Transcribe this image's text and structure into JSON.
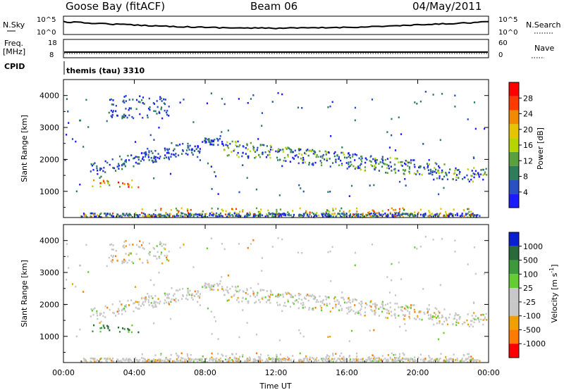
{
  "header": {
    "station": "Goose Bay (fitACF)",
    "beam": "Beam 06",
    "date": "04/May/2011"
  },
  "panels": {
    "nsky_label": "N.Sky",
    "nsky_ticks": [
      "10^5",
      "10^0"
    ],
    "nsearch_label": "N.Search",
    "nsearch_ticks": [
      "10^5",
      "10^0"
    ],
    "freq_label": "Freq.",
    "freq_unit": "[MHz]",
    "freq_ticks": [
      "18",
      "8"
    ],
    "nave_label": "Nave",
    "nave_ticks": [
      "60",
      "0"
    ],
    "cpid_label": "CPID",
    "cpid_value": "themis (tau) 3310"
  },
  "chart_data": [
    {
      "type": "heatmap",
      "name": "power",
      "ylabel": "Slant Range [km]",
      "yticks": [
        1000,
        2000,
        3000,
        4000
      ],
      "ylim": [
        180,
        4500
      ],
      "xlim": [
        0,
        24
      ],
      "xticks": [
        "00:00",
        "04:00",
        "08:00",
        "12:00",
        "16:00",
        "20:00",
        "00:00"
      ],
      "colorbar": {
        "label": "Power [dB]",
        "ticks": [
          "4",
          "8",
          "12",
          "16",
          "20",
          "24",
          "28"
        ],
        "colors": [
          "#1b1bff",
          "#2a4fbf",
          "#2e7d5a",
          "#5aa03c",
          "#b6d400",
          "#e6c400",
          "#f08a00",
          "#ff3a00",
          "#ff0000"
        ]
      },
      "features": [
        {
          "t0": 1.6,
          "t1": 4.4,
          "r0": 1150,
          "r1": 1400,
          "level": "high"
        },
        {
          "t0": 1.5,
          "t1": 9.0,
          "r0": 1500,
          "r1": 2200,
          "level": "low"
        },
        {
          "t0": 2.5,
          "t1": 6.0,
          "r0": 3300,
          "r1": 4000,
          "level": "low"
        },
        {
          "t0": 9.0,
          "t1": 24.0,
          "r0": 1300,
          "r1": 2100,
          "level": "low-mid"
        },
        {
          "t0": 4.0,
          "t1": 23.0,
          "r0": 250,
          "r1": 500,
          "level": "mid"
        }
      ]
    },
    {
      "type": "heatmap",
      "name": "velocity",
      "ylabel": "Slant Range [km]",
      "yticks": [
        1000,
        2000,
        3000,
        4000
      ],
      "ylim": [
        180,
        4500
      ],
      "xlim": [
        0,
        24
      ],
      "xticks": [
        "00:00",
        "04:00",
        "08:00",
        "12:00",
        "16:00",
        "20:00",
        "00:00"
      ],
      "xlabel": "Time UT",
      "colorbar": {
        "label": "Velocity [m s",
        "label_sup": "-1",
        "label_tail": "]",
        "ticks": [
          "1000",
          "500",
          "100",
          "25",
          "-25",
          "-100",
          "-500",
          "-1000"
        ],
        "colors": [
          "#0a1fd0",
          "#2a6a3a",
          "#3c9a3c",
          "#66cc33",
          "#c8c8c8",
          "#c8c8c8",
          "#f0a000",
          "#ff7a00",
          "#ff0000"
        ]
      }
    }
  ]
}
